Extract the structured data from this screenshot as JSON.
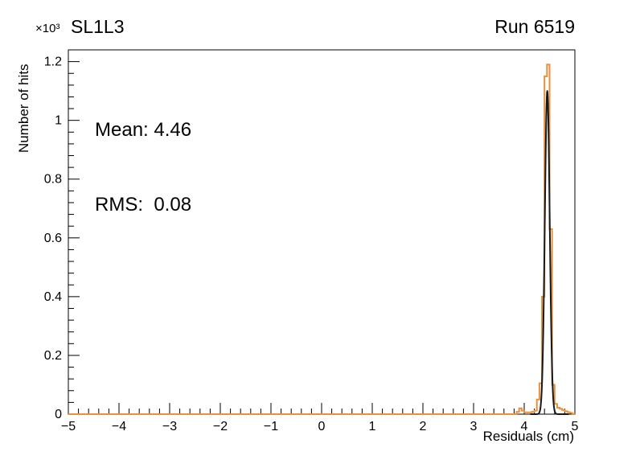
{
  "chart": {
    "title": "SL1L3",
    "exponent_label": "×10³",
    "run_label": "Run 6519",
    "stats": {
      "mean_line": "Mean: 4.46",
      "rms_line": "RMS:  0.08"
    },
    "xlabel": "Residuals (cm)",
    "ylabel": "Number of hits",
    "colors": {
      "hist": "#e8903c",
      "fit": "#16191d",
      "axis": "#000000",
      "text": "#000000",
      "background": "#ffffff"
    }
  },
  "chart_data": {
    "type": "bar",
    "subtype": "step-histogram-with-gaussian-fit",
    "title": "SL1L3",
    "annotation": "Run 6519",
    "xlabel": "Residuals (cm)",
    "ylabel": "Number of hits (×10³)",
    "xlim": [
      -5,
      5
    ],
    "ylim": [
      0,
      1.24
    ],
    "grid": false,
    "legend": "none",
    "x_major_ticks": [
      -5,
      -4,
      -3,
      -2,
      -1,
      0,
      1,
      2,
      3,
      4,
      5
    ],
    "x_tick_labels": [
      "−5",
      "−4",
      "−3",
      "−2",
      "−1",
      "0",
      "1",
      "2",
      "3",
      "4",
      "5"
    ],
    "y_major_ticks": [
      0,
      0.2,
      0.4,
      0.6,
      0.8,
      1.0,
      1.2
    ],
    "y_tick_labels": [
      "0",
      "0.2",
      "0.4",
      "0.6",
      "0.8",
      "1",
      "1.2"
    ],
    "x_minor_step": 0.2,
    "y_minor_step": 0.04,
    "values_unit": "thousands of hits",
    "bin_edges": [
      3.85,
      3.9,
      3.95,
      4.0,
      4.05,
      4.1,
      4.15,
      4.2,
      4.25,
      4.3,
      4.35,
      4.4,
      4.45,
      4.5,
      4.55,
      4.6,
      4.65,
      4.7,
      4.75,
      4.8,
      4.85,
      4.9,
      4.95
    ],
    "counts": [
      0.008,
      0.02,
      0.012,
      0.006,
      0.006,
      0.006,
      0.008,
      0.012,
      0.05,
      0.105,
      0.4,
      1.15,
      1.19,
      0.63,
      0.1,
      0.035,
      0.022,
      0.018,
      0.014,
      0.01,
      0.007,
      0.004
    ],
    "stats": {
      "mean": 4.46,
      "rms": 0.08
    },
    "fit": {
      "shape": "gaussian",
      "mean": 4.455,
      "sigma": 0.048,
      "amplitude": 1.1,
      "range": [
        4.12,
        4.88
      ]
    }
  }
}
